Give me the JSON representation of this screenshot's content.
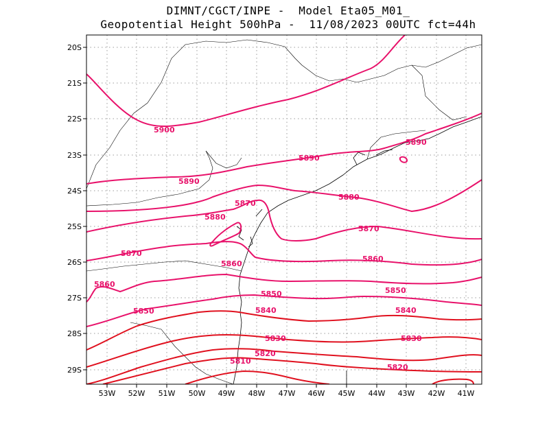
{
  "title": {
    "line1": "DIMNT/CGCT/INPE -  Model Eta05_M01_",
    "line2": "Geopotential Height 500hPa -  11/08/2023 00UTC fct=44h"
  },
  "colors": {
    "pink": "#e8116a",
    "red": "#e0101e",
    "coast": "#000000",
    "grid": "#999999"
  },
  "axes": {
    "lon_labels": [
      "53W",
      "52W",
      "51W",
      "50W",
      "49W",
      "48W",
      "47W",
      "46W",
      "45W",
      "44W",
      "43W",
      "42W",
      "41W"
    ],
    "lat_labels": [
      "20S",
      "21S",
      "22S",
      "23S",
      "24S",
      "25S",
      "26S",
      "27S",
      "28S",
      "29S"
    ]
  },
  "contour_labels": [
    {
      "text": "5900"
    },
    {
      "text": "5890"
    },
    {
      "text": "5890"
    },
    {
      "text": "5890"
    },
    {
      "text": "5880"
    },
    {
      "text": "5880"
    },
    {
      "text": "5870"
    },
    {
      "text": "5870"
    },
    {
      "text": "5870"
    },
    {
      "text": "5860"
    },
    {
      "text": "5860"
    },
    {
      "text": "5860"
    },
    {
      "text": "5850"
    },
    {
      "text": "5850"
    },
    {
      "text": "5850"
    },
    {
      "text": "5840"
    },
    {
      "text": "5840"
    },
    {
      "text": "5830"
    },
    {
      "text": "5830"
    },
    {
      "text": "5820"
    },
    {
      "text": "5820"
    },
    {
      "text": "5810"
    }
  ]
}
